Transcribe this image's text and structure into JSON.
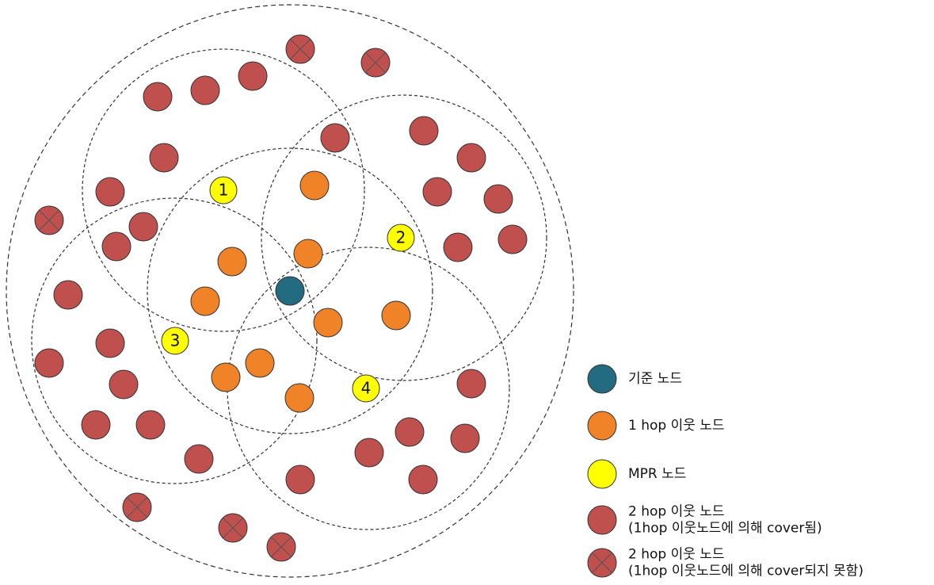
{
  "nodes": {
    "mpr": [
      "1",
      "2",
      "3",
      "4"
    ]
  },
  "legend": [
    {
      "lines": [
        "기준 노드"
      ]
    },
    {
      "lines": [
        "1 hop 이웃 노드"
      ]
    },
    {
      "lines": [
        "MPR 노드"
      ]
    },
    {
      "lines": [
        "2 hop 이웃 노드",
        "(1hop 이웃노드에 의해 cover됨)"
      ]
    },
    {
      "lines": [
        "2 hop 이웃 노드",
        "(1hop 이웃노드에 의해 cover되지 못함)"
      ]
    }
  ]
}
